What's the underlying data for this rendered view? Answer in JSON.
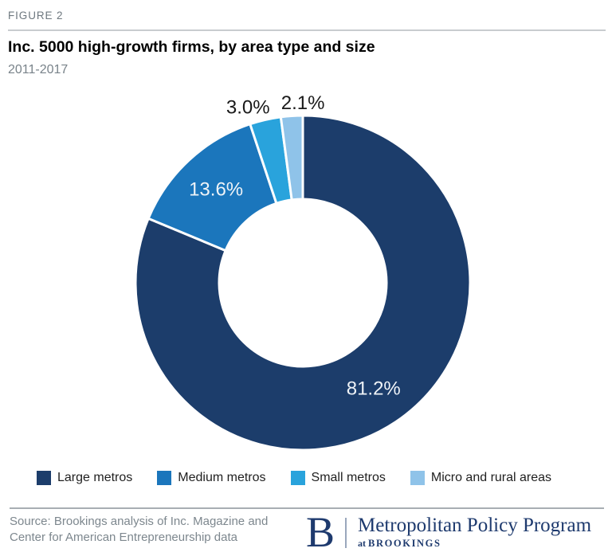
{
  "figure_label": "FIGURE 2",
  "header": {
    "title": "Inc. 5000 high-growth firms, by area type and size",
    "subtitle": "2011-2017"
  },
  "chart_data": {
    "type": "pie",
    "subtype": "donut",
    "title": "Inc. 5000 high-growth firms, by area type and size",
    "period": "2011-2017",
    "categories": [
      "Large metros",
      "Medium metros",
      "Small metros",
      "Micro and rural areas"
    ],
    "values": [
      81.2,
      13.6,
      3.0,
      2.1
    ],
    "labels": [
      "81.2%",
      "13.6%",
      "3.0%",
      "2.1%"
    ],
    "colors": [
      "#1C3D6B",
      "#1B76BC",
      "#29A3DC",
      "#8FC3E9"
    ],
    "start_angle": "12-oclock",
    "direction": "clockwise",
    "inner_radius_ratio": 0.5,
    "legend_position": "bottom",
    "label_color_inside": "#EFF3F7",
    "label_color_outside": "#1A1A1A",
    "segment_divider_color": "#FFFFFF"
  },
  "footer": {
    "source_line1": "Source: Brookings analysis of Inc. Magazine and",
    "source_line2": "Center for American Entrepreneurship data",
    "logo": {
      "letter": "B",
      "program": "Metropolitan Policy Program",
      "at": "at",
      "org": "BROOKINGS"
    }
  }
}
